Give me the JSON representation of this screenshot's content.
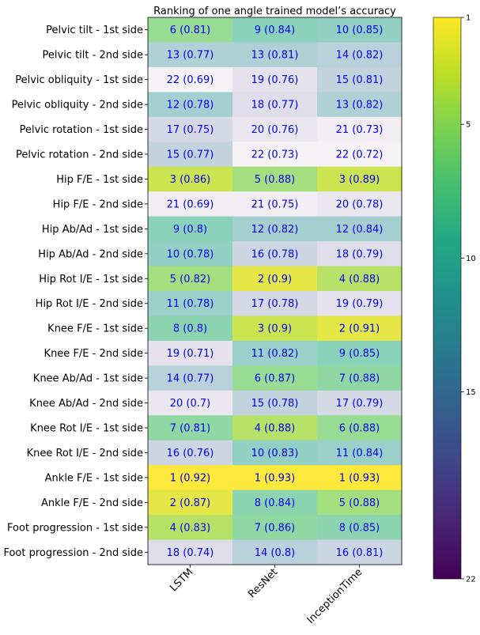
{
  "chart_data": {
    "type": "heatmap",
    "title": "Ranking of one angle trained model’s accuracy",
    "columns": [
      "LSTM",
      "ResNet",
      "InceptionTime"
    ],
    "rows": [
      "Pelvic tilt - 1st side",
      "Pelvic tilt - 2nd side",
      "Pelvic obliquity - 1st side",
      "Pelvic obliquity - 2nd side",
      "Pelvic rotation - 1st side",
      "Pelvic rotation - 2nd side",
      "Hip F/E - 1st side",
      "Hip F/E - 2nd side",
      "Hip Ab/Ad - 1st side",
      "Hip Ab/Ad - 2nd side",
      "Hip Rot I/E - 1st side",
      "Hip Rot I/E - 2nd side",
      "Knee F/E - 1st side",
      "Knee F/E - 2nd side",
      "Knee Ab/Ad - 1st side",
      "Knee Ab/Ad - 2nd side",
      "Knee Rot I/E - 1st side",
      "Knee Rot I/E - 2nd side",
      "Ankle F/E - 1st side",
      "Ankle F/E - 2nd side",
      "Foot progression - 1st side",
      "Foot progression - 2nd side"
    ],
    "ranks": [
      [
        6,
        9,
        10
      ],
      [
        13,
        13,
        14
      ],
      [
        22,
        19,
        15
      ],
      [
        12,
        18,
        13
      ],
      [
        17,
        20,
        21
      ],
      [
        15,
        22,
        22
      ],
      [
        3,
        5,
        3
      ],
      [
        21,
        21,
        20
      ],
      [
        9,
        12,
        12
      ],
      [
        10,
        16,
        18
      ],
      [
        5,
        2,
        4
      ],
      [
        11,
        17,
        19
      ],
      [
        8,
        3,
        2
      ],
      [
        19,
        11,
        9
      ],
      [
        14,
        6,
        7
      ],
      [
        20,
        15,
        17
      ],
      [
        7,
        4,
        6
      ],
      [
        16,
        10,
        11
      ],
      [
        1,
        1,
        1
      ],
      [
        2,
        8,
        5
      ],
      [
        4,
        7,
        8
      ],
      [
        18,
        14,
        16
      ]
    ],
    "accuracy": [
      [
        0.81,
        0.84,
        0.85
      ],
      [
        0.77,
        0.81,
        0.82
      ],
      [
        0.69,
        0.76,
        0.81
      ],
      [
        0.78,
        0.77,
        0.82
      ],
      [
        0.75,
        0.76,
        0.73
      ],
      [
        0.77,
        0.73,
        0.72
      ],
      [
        0.86,
        0.88,
        0.89
      ],
      [
        0.69,
        0.75,
        0.78
      ],
      [
        0.8,
        0.82,
        0.84
      ],
      [
        0.78,
        0.78,
        0.79
      ],
      [
        0.82,
        0.9,
        0.88
      ],
      [
        0.78,
        0.78,
        0.79
      ],
      [
        0.8,
        0.9,
        0.91
      ],
      [
        0.71,
        0.82,
        0.85
      ],
      [
        0.77,
        0.87,
        0.88
      ],
      [
        0.7,
        0.78,
        0.79
      ],
      [
        0.81,
        0.88,
        0.88
      ],
      [
        0.76,
        0.83,
        0.84
      ],
      [
        0.92,
        0.93,
        0.93
      ],
      [
        0.87,
        0.84,
        0.88
      ],
      [
        0.83,
        0.86,
        0.85
      ],
      [
        0.74,
        0.8,
        0.81
      ]
    ],
    "colorbar": {
      "colormap": "viridis",
      "range": [
        1,
        22
      ],
      "ticks": [
        1,
        5,
        10,
        15,
        22
      ],
      "inverted": true
    },
    "cell_text_color": "#0000ee",
    "grid": false,
    "legend": "colorbar-right"
  }
}
